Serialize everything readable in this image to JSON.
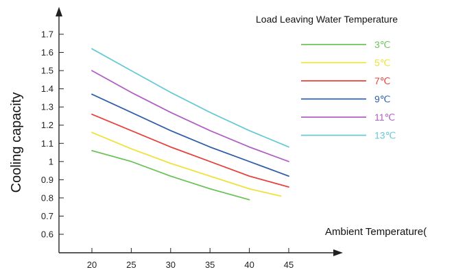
{
  "chart_data": {
    "type": "line",
    "title": "",
    "xlabel": "Ambient Temperature(",
    "ylabel": "Cooling capacity",
    "legend_title": "Load Leaving Water Temperature",
    "legend_position": "right",
    "xlim": [
      15,
      50
    ],
    "ylim": [
      0.5,
      1.8
    ],
    "x_ticks": [
      20,
      25,
      30,
      35,
      40,
      45
    ],
    "x_tick_labels": [
      "20",
      "25",
      "30",
      "35",
      "40",
      "45"
    ],
    "y_ticks": [
      0.6,
      0.7,
      0.8,
      0.9,
      1.0,
      1.1,
      1.2,
      1.3,
      1.4,
      1.5,
      1.6,
      1.7
    ],
    "y_tick_labels": [
      "0.6",
      "0.7",
      "0.8",
      "0.9",
      "1",
      "1.1",
      "1.2",
      "1.3",
      "1.4",
      "1.5",
      "1.6",
      "1.7"
    ],
    "grid": false,
    "series": [
      {
        "name": "3℃",
        "color": "#6ec25a",
        "x": [
          20,
          25,
          30,
          35,
          40
        ],
        "y": [
          1.06,
          1.0,
          0.92,
          0.85,
          0.79
        ]
      },
      {
        "name": "5℃",
        "color": "#f0e13a",
        "x": [
          20,
          25,
          30,
          35,
          40,
          44
        ],
        "y": [
          1.16,
          1.07,
          0.99,
          0.92,
          0.85,
          0.81
        ]
      },
      {
        "name": "7℃",
        "color": "#e8403a",
        "x": [
          20,
          25,
          30,
          35,
          40,
          45
        ],
        "y": [
          1.26,
          1.17,
          1.08,
          1.0,
          0.92,
          0.86
        ]
      },
      {
        "name": "9℃",
        "color": "#2f5fa8",
        "x": [
          20,
          25,
          30,
          35,
          40,
          45
        ],
        "y": [
          1.37,
          1.27,
          1.17,
          1.08,
          1.0,
          0.92
        ]
      },
      {
        "name": "11℃",
        "color": "#b15ec4",
        "x": [
          20,
          25,
          30,
          35,
          40,
          45
        ],
        "y": [
          1.5,
          1.38,
          1.27,
          1.17,
          1.08,
          1.0
        ]
      },
      {
        "name": "13℃",
        "color": "#67c9d6",
        "x": [
          20,
          25,
          30,
          35,
          40,
          45
        ],
        "y": [
          1.62,
          1.5,
          1.38,
          1.27,
          1.17,
          1.08
        ]
      }
    ]
  }
}
